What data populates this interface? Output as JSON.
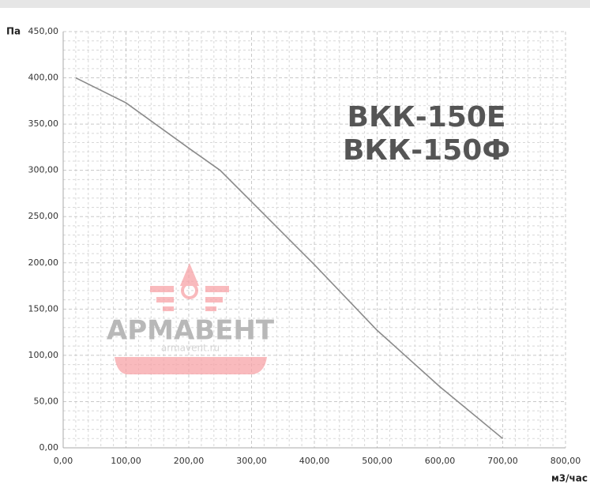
{
  "chart_data": {
    "type": "line",
    "y_label": "Па",
    "x_label": "м3/час",
    "annotations": [
      "ВКК-150Е",
      "ВКК-150Ф"
    ],
    "watermark": {
      "name": "АРМАВЕНТ",
      "site": "armavent.ru"
    },
    "x": [
      20,
      100,
      200,
      250,
      300,
      400,
      500,
      600,
      700
    ],
    "series": [
      {
        "name": null,
        "color": "#8a8a8a",
        "values": [
          400,
          373,
          324,
          300,
          266,
          198,
          127,
          66,
          10
        ]
      }
    ],
    "xlim": [
      0,
      800
    ],
    "xticks": [
      {
        "value": 0,
        "label": "0,00"
      },
      {
        "value": 100,
        "label": "100,00"
      },
      {
        "value": 200,
        "label": "200,00"
      },
      {
        "value": 300,
        "label": "300,00"
      },
      {
        "value": 400,
        "label": "400,00"
      },
      {
        "value": 500,
        "label": "500,00"
      },
      {
        "value": 600,
        "label": "600,00"
      },
      {
        "value": 700,
        "label": "700,00"
      },
      {
        "value": 800,
        "label": "800,00"
      }
    ],
    "ylim": [
      0,
      450
    ],
    "yticks": [
      {
        "value": 0,
        "label": "0,00"
      },
      {
        "value": 50,
        "label": "50,00"
      },
      {
        "value": 100,
        "label": "100,00"
      },
      {
        "value": 150,
        "label": "150,00"
      },
      {
        "value": 200,
        "label": "200,00"
      },
      {
        "value": 250,
        "label": "250,00"
      },
      {
        "value": 300,
        "label": "300,00"
      },
      {
        "value": 350,
        "label": "350,00"
      },
      {
        "value": 400,
        "label": "400,00"
      },
      {
        "value": 450,
        "label": "450,00"
      }
    ],
    "grid": true
  }
}
